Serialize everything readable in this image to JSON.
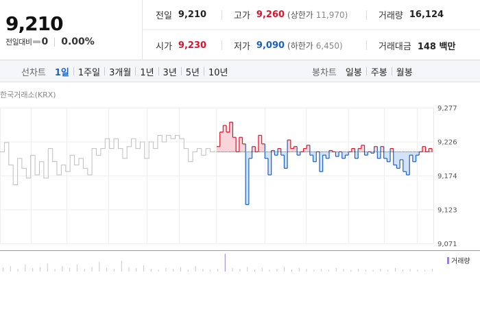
{
  "summary": {
    "current_price": "9,210",
    "change_label": "전일대비",
    "change_value": "0",
    "change_rate": "0.00%",
    "prev_close": {
      "label": "전일",
      "value": "9,210"
    },
    "high": {
      "label": "고가",
      "value": "9,260",
      "limit_label": "(상한가",
      "limit_value": "11,970)"
    },
    "volume": {
      "label": "거래량",
      "value": "16,124"
    },
    "open": {
      "label": "시가",
      "value": "9,230"
    },
    "low": {
      "label": "저가",
      "value": "9,090",
      "limit_label": "(하한가",
      "limit_value": "6,450)"
    },
    "trade_amount": {
      "label": "거래대금",
      "value": "148 백만"
    }
  },
  "tabs": {
    "line_title": "선차트",
    "line_items": [
      "1일",
      "1주일",
      "3개월",
      "1년",
      "3년",
      "5년",
      "10년"
    ],
    "line_active": 0,
    "candle_title": "봉차트",
    "candle_items": [
      "일봉",
      "주봉",
      "월봉"
    ]
  },
  "chart": {
    "exchange_label": "한국거래소(KRX)",
    "volume_legend": "거래량",
    "colors": {
      "up": "#e0122b",
      "down": "#1a5fc4",
      "prev_day": "#bdbdbd",
      "up_fill": "#f9d5d9",
      "down_fill": "#d3e3f5",
      "volume": "#9b7fd1",
      "grid": "#eeeeee",
      "baseline": "#555555"
    }
  },
  "chart_data": {
    "type": "line",
    "title": "",
    "xlabel": "",
    "ylabel": "",
    "ylim": [
      9071,
      9277
    ],
    "y_ticks": [
      "9,277",
      "9,226",
      "9,174",
      "9,123",
      "9,071"
    ],
    "baseline": 9210,
    "series": [
      {
        "role": "previous-session",
        "values": [
          9210,
          9224,
          9190,
          9160,
          9200,
          9185,
          9170,
          9205,
          9175,
          9195,
          9170,
          9215,
          9195,
          9175,
          9190,
          9180,
          9205,
          9190,
          9200,
          9185,
          9175,
          9215,
          9205,
          9215,
          9230,
          9215,
          9230,
          9215,
          9200,
          9218,
          9230,
          9215,
          9225,
          9200,
          9225,
          9215,
          9235,
          9225,
          9235,
          9230,
          9235,
          9230,
          9215,
          9195,
          9210,
          9215,
          9205,
          9215,
          9210,
          9212
        ]
      },
      {
        "role": "current-session",
        "values": [
          9218,
          9240,
          9250,
          9240,
          9255,
          9232,
          9210,
          9232,
          9222,
          9130,
          9200,
          9218,
          9210,
          9235,
          9222,
          9200,
          9175,
          9212,
          9205,
          9215,
          9205,
          9185,
          9228,
          9215,
          9218,
          9205,
          9210,
          9215,
          9220,
          9205,
          9195,
          9210,
          9180,
          9205,
          9200,
          9212,
          9210,
          9203,
          9210,
          9200,
          9205,
          9210,
          9215,
          9200,
          9215,
          9220,
          9205,
          9210,
          9208,
          9218,
          9200,
          9218,
          9200,
          9195,
          9215,
          9190,
          9185,
          9198,
          9180,
          9175,
          9205,
          9195,
          9205,
          9210,
          9218,
          9210,
          9215,
          9210
        ]
      }
    ],
    "volume": [
      4,
      6,
      3,
      8,
      4,
      5,
      9,
      3,
      6,
      4,
      8,
      3,
      5,
      11,
      4,
      3,
      12,
      5,
      4,
      7,
      3,
      2,
      4,
      3,
      5,
      2,
      6,
      3,
      2,
      3,
      20,
      4,
      3,
      5,
      2,
      4,
      2,
      3,
      5,
      2,
      4,
      3,
      2,
      3,
      2,
      4,
      3,
      2,
      3,
      2,
      2,
      3,
      2,
      4,
      2,
      3,
      2,
      2,
      3
    ]
  }
}
